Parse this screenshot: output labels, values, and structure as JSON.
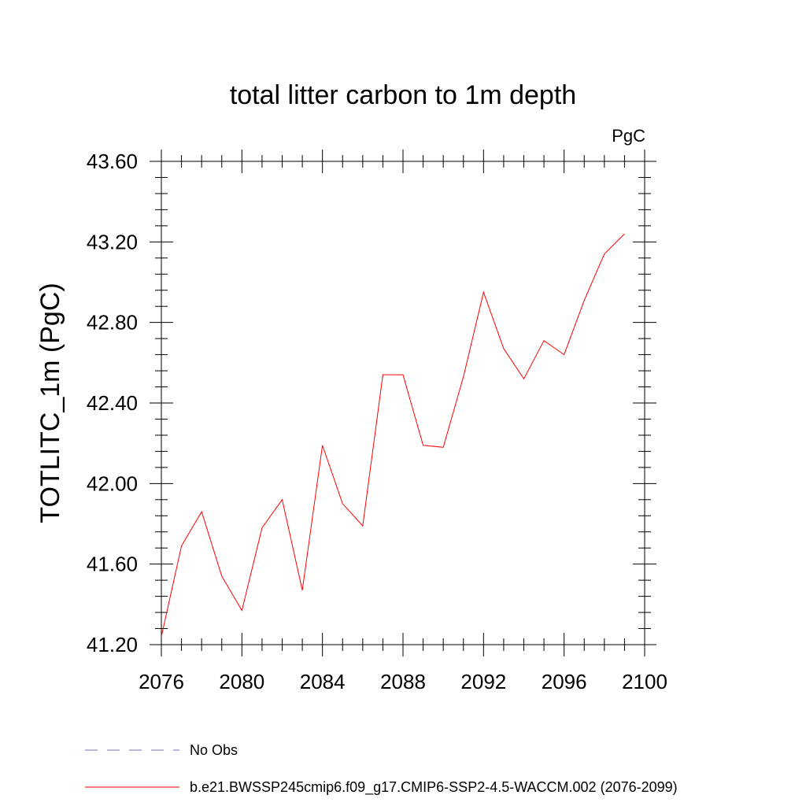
{
  "chart_data": {
    "type": "line",
    "title": "total litter carbon to 1m depth",
    "units": "PgC",
    "ylabel": "TOTLITC_1m  (PgC)",
    "xlabel": "",
    "xlim": [
      2076,
      2100
    ],
    "ylim": [
      41.2,
      43.6
    ],
    "x_major_ticks": [
      2076,
      2080,
      2084,
      2088,
      2092,
      2096,
      2100
    ],
    "x_tick_labels": [
      "2076",
      "2080",
      "2084",
      "2088",
      "2092",
      "2096",
      "2100"
    ],
    "y_major_ticks": [
      41.2,
      41.6,
      42.0,
      42.4,
      42.8,
      43.2,
      43.6
    ],
    "y_tick_labels": [
      "41.20",
      "41.60",
      "42.00",
      "42.40",
      "42.80",
      "43.20",
      "43.60"
    ],
    "grid": false,
    "series": [
      {
        "name": "b.e21.BWSSP245cmip6.f09_g17.CMIP6-SSP2-4.5-WACCM.002 (2076-2099)",
        "color": "#ff0000",
        "style": "solid",
        "x": [
          2076,
          2077,
          2078,
          2079,
          2080,
          2081,
          2082,
          2083,
          2084,
          2085,
          2086,
          2087,
          2088,
          2089,
          2090,
          2091,
          2092,
          2093,
          2094,
          2095,
          2096,
          2097,
          2098,
          2099
        ],
        "y": [
          41.24,
          41.69,
          41.86,
          41.54,
          41.37,
          41.78,
          41.92,
          41.47,
          42.19,
          41.9,
          41.79,
          42.54,
          42.54,
          42.19,
          42.18,
          42.53,
          42.95,
          42.67,
          42.52,
          42.71,
          42.64,
          42.91,
          43.14,
          43.24
        ]
      }
    ],
    "legend": [
      {
        "label": "No Obs",
        "color": "#7b6fb0",
        "style": "dashed"
      },
      {
        "label": "b.e21.BWSSP245cmip6.f09_g17.CMIP6-SSP2-4.5-WACCM.002 (2076-2099)",
        "color": "#ff0000",
        "style": "solid"
      }
    ],
    "legend_position": "bottom"
  }
}
